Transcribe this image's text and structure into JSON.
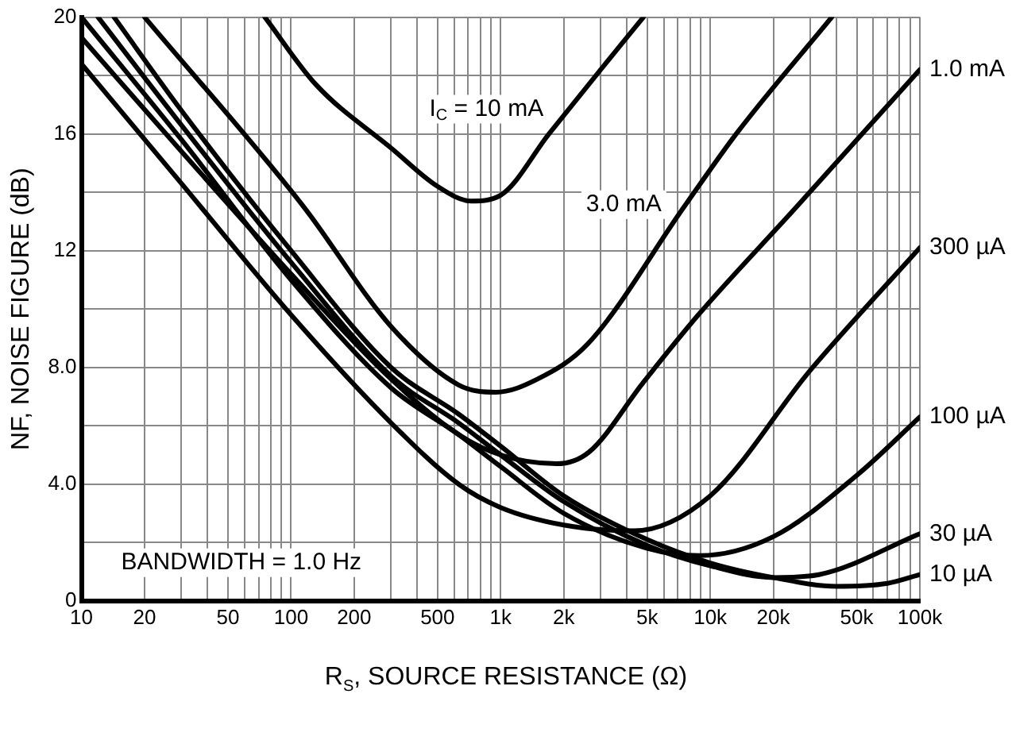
{
  "chart_data": {
    "type": "line",
    "xlabel": "R$_{S}$, SOURCE RESISTANCE (Ω)",
    "ylabel": "NF, NOISE FIGURE (dB)",
    "log": "x",
    "grid": true,
    "marker": "none",
    "line_style": "solid",
    "xlim": [
      10,
      100000
    ],
    "ylim": [
      0,
      20
    ],
    "xticks": [
      10,
      20,
      {
        "value": 30,
        "label": null
      },
      {
        "value": 40,
        "label": null
      },
      50,
      {
        "value": 60,
        "label": null
      },
      {
        "value": 70,
        "label": null
      },
      {
        "value": 80,
        "label": null
      },
      {
        "value": 90,
        "label": null
      },
      100,
      200,
      {
        "value": 300,
        "label": null
      },
      {
        "value": 400,
        "label": null
      },
      500,
      {
        "value": 600,
        "label": null
      },
      {
        "value": 700,
        "label": null
      },
      {
        "value": 800,
        "label": null
      },
      {
        "value": 900,
        "label": null
      },
      {
        "value": 1000,
        "label": "1k"
      },
      {
        "value": 2000,
        "label": "2k"
      },
      {
        "value": 3000,
        "label": null
      },
      {
        "value": 4000,
        "label": null
      },
      {
        "value": 5000,
        "label": "5k"
      },
      {
        "value": 6000,
        "label": null
      },
      {
        "value": 7000,
        "label": null
      },
      {
        "value": 8000,
        "label": null
      },
      {
        "value": 9000,
        "label": null
      },
      {
        "value": 10000,
        "label": "10k"
      },
      {
        "value": 20000,
        "label": "20k"
      },
      {
        "value": 30000,
        "label": null
      },
      {
        "value": 40000,
        "label": null
      },
      {
        "value": 50000,
        "label": "50k"
      },
      {
        "value": 60000,
        "label": null
      },
      {
        "value": 70000,
        "label": null
      },
      {
        "value": 80000,
        "label": null
      },
      {
        "value": 90000,
        "label": null
      },
      {
        "value": 100000,
        "label": "100k"
      }
    ],
    "yticks": [
      0,
      {
        "value": 2,
        "label": null
      },
      {
        "value": 4,
        "label": "4.0"
      },
      {
        "value": 6,
        "label": null
      },
      {
        "value": 8,
        "label": "8.0"
      },
      {
        "value": 10,
        "label": null
      },
      12,
      {
        "value": 14,
        "label": null
      },
      16,
      {
        "value": 18,
        "label": null
      },
      20
    ],
    "series": [
      {
        "name": "I$_{C}$ = 10 mA",
        "color": "#000000",
        "x": [
          75,
          131,
          302,
          500,
          724,
          1000,
          1700,
          3160,
          4800
        ],
        "values": [
          20,
          17.7,
          15.5,
          14.2,
          13.7,
          13.9,
          16.0,
          18.4,
          20
        ]
      },
      {
        "name": "3.0 mA",
        "color": "#000000",
        "x": [
          20,
          115,
          300,
          630,
          950,
          1500,
          2600,
          7500,
          13300,
          38000
        ],
        "values": [
          20,
          13.5,
          9.4,
          7.4,
          7.15,
          7.6,
          8.8,
          13.5,
          16.0,
          20
        ]
      },
      {
        "name": "1.0 mA",
        "color": "#000000",
        "x": [
          10,
          30,
          100,
          300,
          630,
          1000,
          1845,
          2640,
          4810,
          8770,
          25800,
          100000
        ],
        "values": [
          19.3,
          15.4,
          11.2,
          7.6,
          5.7,
          5.0,
          4.7,
          5.1,
          7.5,
          9.8,
          13.5,
          18.2
        ]
      },
      {
        "name": "300 µA",
        "color": "#000000",
        "x": [
          10,
          30,
          100,
          300,
          630,
          1000,
          2000,
          4300,
          10000,
          30000,
          100000
        ],
        "values": [
          18.4,
          14.3,
          9.8,
          6.1,
          4.0,
          3.2,
          2.6,
          2.4,
          3.6,
          7.9,
          12.1
        ]
      },
      {
        "name": "100 µA",
        "color": "#000000",
        "x": [
          10,
          30,
          100,
          300,
          630,
          1000,
          2000,
          5000,
          8900,
          20000,
          50000,
          100000
        ],
        "values": [
          20,
          15.8,
          11.0,
          7.3,
          5.7,
          4.6,
          3.0,
          1.8,
          1.55,
          2.2,
          4.3,
          6.3
        ]
      },
      {
        "name": "30 µA",
        "color": "#000000",
        "x": [
          12,
          30,
          100,
          300,
          630,
          1000,
          2000,
          5000,
          10000,
          20000,
          33000,
          100000
        ],
        "values": [
          20,
          16.3,
          11.6,
          7.7,
          6.1,
          5.0,
          3.4,
          1.9,
          1.2,
          0.8,
          0.9,
          2.3
        ]
      },
      {
        "name": "10 µA",
        "color": "#000000",
        "x": [
          14.3,
          30,
          100,
          300,
          630,
          1000,
          2000,
          5000,
          10000,
          20000,
          40000,
          70000,
          100000
        ],
        "values": [
          20,
          16.8,
          12.0,
          8.0,
          6.4,
          5.3,
          3.6,
          2.1,
          1.3,
          0.8,
          0.5,
          0.6,
          0.9
        ]
      }
    ],
    "annotations": [
      "BANDWIDTH = 1.0 Hz"
    ]
  }
}
